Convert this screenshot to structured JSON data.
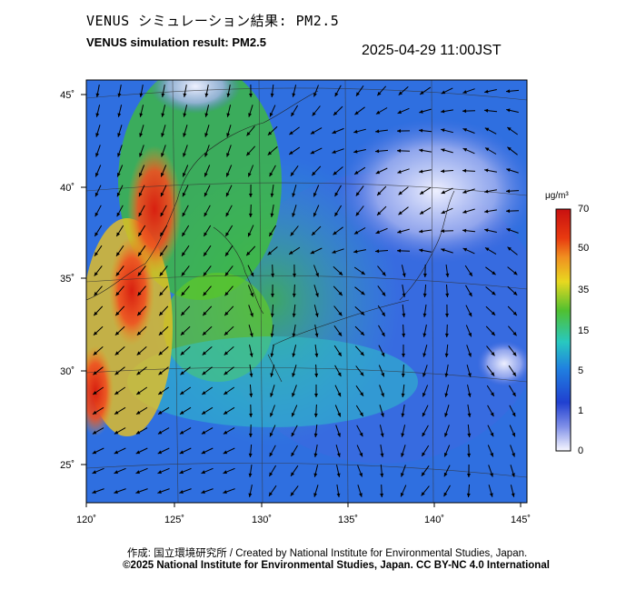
{
  "title_jp": "VENUS シミュレーション結果: PM2.5",
  "title_en": "VENUS simulation result: PM2.5",
  "timestamp": "2025-04-29 11:00JST",
  "map": {
    "lon_ticks": [
      "120˚",
      "125˚",
      "130˚",
      "135˚",
      "140˚",
      "145˚"
    ],
    "lat_ticks": [
      "45˚",
      "40˚",
      "35˚",
      "30˚",
      "25˚"
    ]
  },
  "colorbar": {
    "unit": "μg/m³",
    "ticks": [
      "70",
      "50",
      "35",
      "15",
      "5",
      "1",
      "0"
    ],
    "colors": [
      "#d01a10",
      "#f08020",
      "#e8d020",
      "#40c030",
      "#30c0c8",
      "#2060e0",
      "#6080f0",
      "#b0b8f0",
      "#f4f4ff"
    ]
  },
  "credit_line1": "作成: 国立環境研究所 / Created by National Institute for Environmental Studies, Japan.",
  "credit_line2": "©2025 National Institute for Environmental Studies, Japan. CC BY-NC 4.0 International"
}
